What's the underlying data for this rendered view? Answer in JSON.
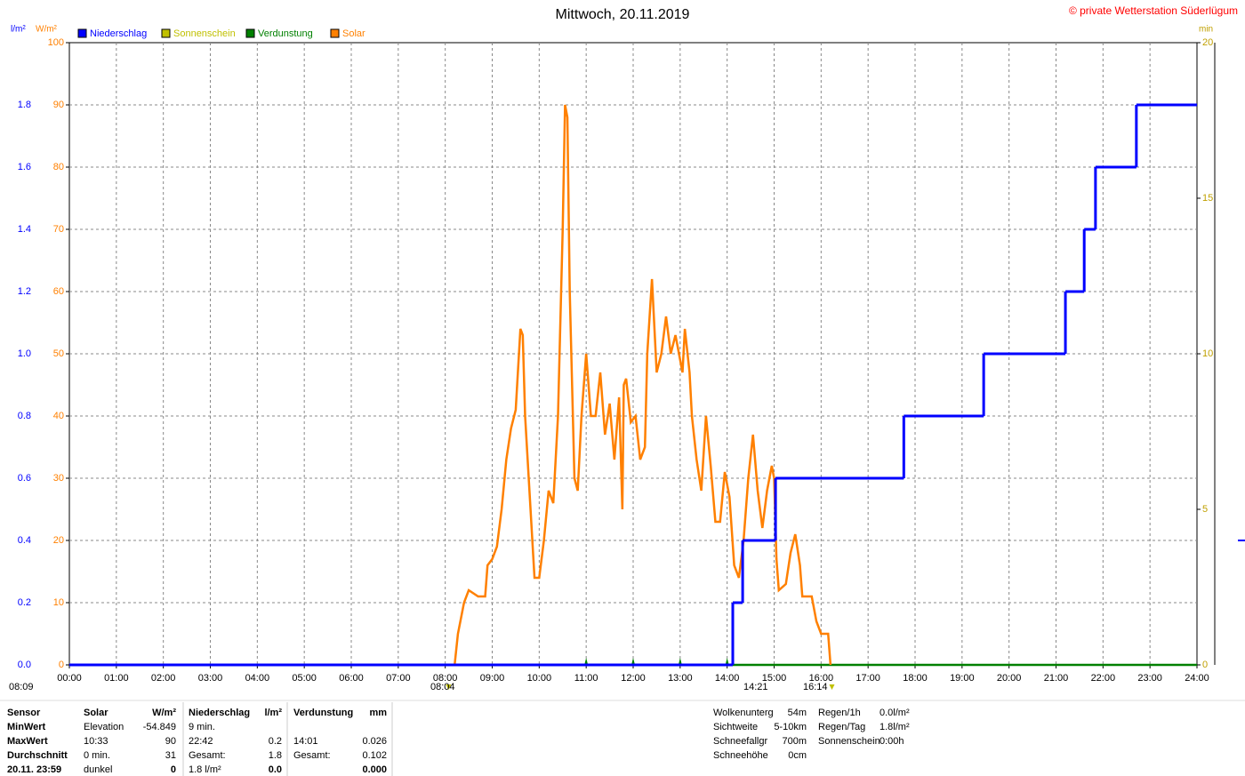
{
  "chart_data": {
    "type": "line",
    "title": "Mittwoch, 20.11.2019",
    "copyright": "© private Wetterstation Süderlügum",
    "y_unit": "l/m²",
    "y2_unit": "W/m²",
    "y3_unit": "min",
    "xlim": [
      0,
      24
    ],
    "xticks": [
      {
        "value": 0,
        "label": "00:00"
      },
      {
        "value": 1,
        "label": "01:00"
      },
      {
        "value": 2,
        "label": "02:00"
      },
      {
        "value": 3,
        "label": "03:00"
      },
      {
        "value": 4,
        "label": "04:00"
      },
      {
        "value": 5,
        "label": "05:00"
      },
      {
        "value": 6,
        "label": "06:00"
      },
      {
        "value": 7,
        "label": "07:00"
      },
      {
        "value": 8,
        "label": "08:00"
      },
      {
        "value": 9,
        "label": "09:00"
      },
      {
        "value": 10,
        "label": "10:00"
      },
      {
        "value": 11,
        "label": "11:00"
      },
      {
        "value": 12,
        "label": "12:00"
      },
      {
        "value": 13,
        "label": "13:00"
      },
      {
        "value": 14,
        "label": "14:00"
      },
      {
        "value": 15,
        "label": "15:00"
      },
      {
        "value": 16,
        "label": "16:00"
      },
      {
        "value": 17,
        "label": "17:00"
      },
      {
        "value": 18,
        "label": "18:00"
      },
      {
        "value": 19,
        "label": "19:00"
      },
      {
        "value": 20,
        "label": "20:00"
      },
      {
        "value": 21,
        "label": "21:00"
      },
      {
        "value": 22,
        "label": "22:00"
      },
      {
        "value": 23,
        "label": "23:00"
      },
      {
        "value": 24,
        "label": "24:00"
      }
    ],
    "ylim": [
      0,
      2
    ],
    "yticks": [
      {
        "value": 0,
        "label": "0.0"
      },
      {
        "value": 0.2,
        "label": "0.2"
      },
      {
        "value": 0.4,
        "label": "0.4"
      },
      {
        "value": 0.6,
        "label": "0.6"
      },
      {
        "value": 0.8,
        "label": "0.8"
      },
      {
        "value": 1,
        "label": "1.0"
      },
      {
        "value": 1.2,
        "label": "1.2"
      },
      {
        "value": 1.4,
        "label": "1.4"
      },
      {
        "value": 1.6,
        "label": "1.6"
      },
      {
        "value": 1.8,
        "label": "1.8"
      }
    ],
    "y2lim": [
      0,
      100
    ],
    "y2ticks": [
      0,
      10,
      20,
      30,
      40,
      50,
      60,
      70,
      80,
      90,
      100
    ],
    "y3lim": [
      0,
      20
    ],
    "y3ticks": [
      0,
      5,
      10,
      15,
      20
    ],
    "grid": true,
    "series": [
      {
        "name": "Niederschlag",
        "color": "#0000ff",
        "style": "step",
        "x": [
          0,
          14.12,
          14.33,
          15.03,
          17.76,
          19.46,
          21.2,
          21.6,
          21.84,
          22.71
        ],
        "values": [
          0,
          0.2,
          0.4,
          0.6,
          0.8,
          1.0,
          1.2,
          1.4,
          1.6,
          1.8
        ]
      },
      {
        "name": "Sonnenschein",
        "color": "#c0c000",
        "style": "marker",
        "axis": "y3",
        "x": [
          8.07,
          16.23
        ],
        "values": [
          0,
          0
        ]
      },
      {
        "name": "Verdunstung",
        "color": "#008000",
        "style": "line",
        "axis": "y3",
        "x": [
          0,
          11,
          12,
          13,
          14,
          24
        ],
        "values": [
          0,
          0,
          0,
          0,
          0,
          0
        ]
      },
      {
        "name": "Solar",
        "color": "#ff8000",
        "style": "line",
        "axis": "y2",
        "x": [
          0,
          8.2,
          8.27,
          8.4,
          8.5,
          8.7,
          8.85,
          8.9,
          9.0,
          9.1,
          9.2,
          9.3,
          9.4,
          9.5,
          9.6,
          9.65,
          9.7,
          9.8,
          9.9,
          10.0,
          10.1,
          10.2,
          10.3,
          10.4,
          10.5,
          10.55,
          10.6,
          10.65,
          10.75,
          10.82,
          10.9,
          11.0,
          11.1,
          11.2,
          11.3,
          11.4,
          11.5,
          11.6,
          11.7,
          11.77,
          11.8,
          11.85,
          11.95,
          12.05,
          12.15,
          12.25,
          12.3,
          12.4,
          12.5,
          12.6,
          12.7,
          12.8,
          12.9,
          13.0,
          13.05,
          13.1,
          13.2,
          13.25,
          13.35,
          13.45,
          13.55,
          13.65,
          13.75,
          13.85,
          13.95,
          14.05,
          14.15,
          14.25,
          14.35,
          14.45,
          14.55,
          14.65,
          14.75,
          14.85,
          14.95,
          15.0,
          15.05,
          15.1,
          15.25,
          15.35,
          15.45,
          15.55,
          15.6,
          15.8,
          15.9,
          16.0,
          16.15,
          16.2
        ],
        "values": [
          0,
          0,
          5,
          10,
          12,
          11,
          11,
          16,
          17,
          19,
          25,
          33,
          38,
          41,
          54,
          53,
          40,
          27,
          14,
          14,
          20,
          28,
          26,
          40,
          70,
          90,
          88,
          60,
          30,
          28,
          40,
          50,
          40,
          40,
          47,
          37,
          42,
          33,
          43,
          25,
          45,
          46,
          39,
          40,
          33,
          35,
          50,
          62,
          47,
          50,
          56,
          50,
          53,
          49,
          47,
          54,
          47,
          40,
          33,
          28,
          40,
          32,
          23,
          23,
          31,
          27,
          16,
          14,
          20,
          30,
          37,
          28,
          22,
          28,
          32,
          30,
          17,
          12,
          13,
          18,
          21,
          16,
          11,
          11,
          7,
          5,
          5,
          0
        ]
      }
    ],
    "annotations": [
      "08:09",
      "08:04",
      "14:21",
      "16:14"
    ]
  },
  "stats": {
    "rows": [
      [
        "Sensor",
        "Solar",
        "W/m²",
        "Niederschlag",
        "l/m²",
        "Verdunstung",
        "mm"
      ],
      [
        "MinWert",
        "Elevation",
        "-54.849",
        "9 min.",
        null,
        null,
        null
      ],
      [
        "MaxWert",
        "10:33",
        "90",
        "22:42",
        "0.2",
        "14:01",
        "0.026"
      ],
      [
        "Durchschnitt",
        "0 min.",
        "31",
        "Gesamt:",
        "1.8",
        "Gesamt:",
        "0.102"
      ],
      [
        "20.11. 23:59",
        "dunkel",
        "0",
        "1.8 l/m²",
        "0.0",
        null,
        "0.000"
      ]
    ],
    "conditions": [
      [
        [
          "Wolkenunterg",
          "54m"
        ],
        [
          "Sichtweite",
          "5-10km"
        ],
        [
          "Schneefallgr",
          "700m"
        ],
        [
          "Schneehöhe",
          "0cm"
        ]
      ],
      [
        [
          "Regen/1h",
          "0.0l/m²"
        ],
        [
          "Regen/Tag",
          "1.8l/m²"
        ],
        [
          "Sonnenschein",
          "0:00h"
        ]
      ]
    ]
  }
}
